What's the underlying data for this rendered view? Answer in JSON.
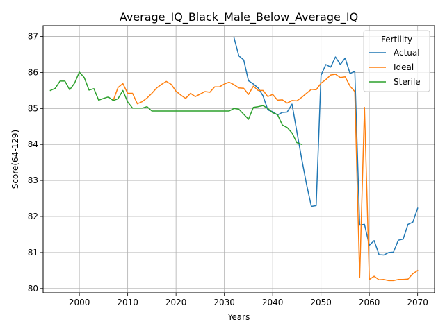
{
  "chart_data": {
    "type": "line",
    "title": "Average_IQ_Black_Male_Below_Average_IQ",
    "xlabel": "Years",
    "ylabel": "Score(64-129)",
    "xlim": [
      1992.5,
      2073.5
    ],
    "ylim": [
      79.88,
      87.3
    ],
    "xticks": [
      2000,
      2010,
      2020,
      2030,
      2040,
      2050,
      2060,
      2070
    ],
    "yticks": [
      80,
      81,
      82,
      83,
      84,
      85,
      86,
      87
    ],
    "grid": true,
    "legend": {
      "title": "Fertility",
      "placement": "top-right"
    },
    "series": [
      {
        "name": "Actual",
        "color": "#1f77b4",
        "x": [
          2032,
          2033,
          2034,
          2035,
          2036,
          2037,
          2038,
          2039,
          2040,
          2041,
          2042,
          2043,
          2044,
          2045,
          2046,
          2047,
          2048,
          2049,
          2050,
          2051,
          2052,
          2053,
          2054,
          2055,
          2056,
          2057,
          2058,
          2059,
          2060,
          2061,
          2062,
          2063,
          2064,
          2065,
          2066,
          2067,
          2068,
          2069,
          2070
        ],
        "y": [
          86.97,
          86.46,
          86.35,
          85.77,
          85.68,
          85.57,
          85.35,
          84.96,
          84.91,
          84.82,
          84.89,
          84.9,
          85.12,
          84.36,
          83.6,
          82.9,
          82.28,
          82.3,
          85.92,
          86.22,
          86.15,
          86.43,
          86.22,
          86.4,
          85.97,
          86.03,
          81.76,
          81.78,
          81.2,
          81.33,
          80.94,
          80.93,
          81.0,
          81.01,
          81.34,
          81.37,
          81.78,
          81.84,
          82.23
        ]
      },
      {
        "name": "Ideal",
        "color": "#ff7f0e",
        "x": [
          2007,
          2008,
          2009,
          2010,
          2011,
          2012,
          2013,
          2014,
          2015,
          2016,
          2017,
          2018,
          2019,
          2020,
          2021,
          2022,
          2023,
          2024,
          2025,
          2026,
          2027,
          2028,
          2029,
          2030,
          2031,
          2032,
          2033,
          2034,
          2035,
          2036,
          2037,
          2038,
          2039,
          2040,
          2041,
          2042,
          2043,
          2044,
          2045,
          2046,
          2047,
          2048,
          2049,
          2050,
          2051,
          2052,
          2053,
          2054,
          2055,
          2056,
          2057,
          2058,
          2059,
          2060,
          2061,
          2062,
          2063,
          2064,
          2065,
          2066,
          2067,
          2068,
          2069,
          2070
        ],
        "y": [
          85.22,
          85.58,
          85.69,
          85.42,
          85.42,
          85.13,
          85.19,
          85.29,
          85.42,
          85.57,
          85.67,
          85.75,
          85.67,
          85.48,
          85.37,
          85.28,
          85.42,
          85.33,
          85.4,
          85.47,
          85.45,
          85.6,
          85.6,
          85.68,
          85.73,
          85.66,
          85.57,
          85.56,
          85.39,
          85.62,
          85.5,
          85.5,
          85.33,
          85.39,
          85.23,
          85.24,
          85.15,
          85.22,
          85.21,
          85.31,
          85.42,
          85.53,
          85.52,
          85.7,
          85.8,
          85.93,
          85.95,
          85.86,
          85.88,
          85.62,
          85.47,
          80.3,
          85.03,
          80.25,
          80.34,
          80.24,
          80.25,
          80.22,
          80.22,
          80.25,
          80.25,
          80.26,
          80.41,
          80.5
        ]
      },
      {
        "name": "Sterile",
        "color": "#2ca02c",
        "x": [
          1994,
          1995,
          1996,
          1997,
          1998,
          1999,
          2000,
          2001,
          2002,
          2003,
          2004,
          2005,
          2006,
          2007,
          2008,
          2009,
          2010,
          2011,
          2012,
          2013,
          2014,
          2015,
          2016,
          2017,
          2018,
          2019,
          2020,
          2021,
          2022,
          2023,
          2024,
          2025,
          2026,
          2027,
          2028,
          2029,
          2030,
          2031,
          2032,
          2033,
          2034,
          2035,
          2036,
          2037,
          2038,
          2039,
          2040,
          2041,
          2042,
          2043,
          2044,
          2045,
          2046
        ],
        "y": [
          85.5,
          85.56,
          85.76,
          85.76,
          85.52,
          85.7,
          86.01,
          85.86,
          85.51,
          85.55,
          85.23,
          85.28,
          85.32,
          85.22,
          85.27,
          85.5,
          85.18,
          85.01,
          85.01,
          85.01,
          85.05,
          84.93,
          84.93,
          84.93,
          84.93,
          84.93,
          84.93,
          84.93,
          84.93,
          84.93,
          84.93,
          84.93,
          84.93,
          84.93,
          84.93,
          84.93,
          84.93,
          84.93,
          85.0,
          84.98,
          84.84,
          84.7,
          85.03,
          85.05,
          85.08,
          85.0,
          84.88,
          84.83,
          84.54,
          84.47,
          84.32,
          84.05,
          84.0
        ]
      }
    ]
  }
}
